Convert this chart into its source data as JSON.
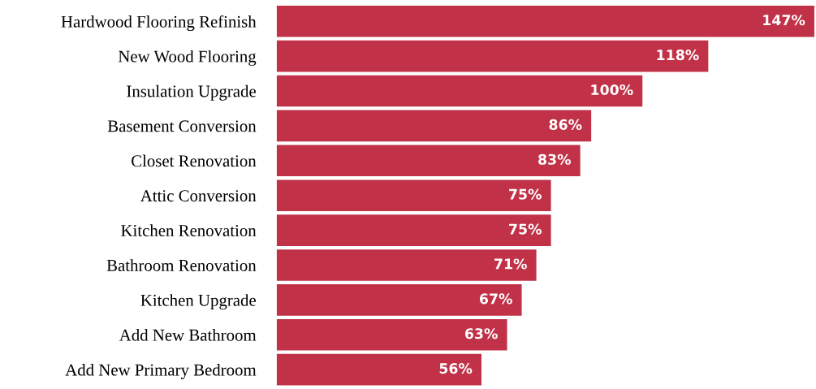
{
  "chart_data": {
    "type": "bar",
    "orientation": "horizontal",
    "categories": [
      "Hardwood Flooring Refinish",
      "New Wood Flooring",
      "Insulation Upgrade",
      "Basement Conversion",
      "Closet Renovation",
      "Attic Conversion",
      "Kitchen Renovation",
      "Bathroom Renovation",
      "Kitchen Upgrade",
      "Add New Bathroom",
      "Add New Primary Bedroom"
    ],
    "values": [
      147,
      118,
      100,
      86,
      83,
      75,
      75,
      71,
      67,
      63,
      56
    ],
    "value_labels": [
      "147%",
      "118%",
      "100%",
      "86%",
      "83%",
      "75%",
      "75%",
      "71%",
      "67%",
      "63%",
      "56%"
    ],
    "color": "#c13248",
    "grid": false,
    "legend": false
  }
}
